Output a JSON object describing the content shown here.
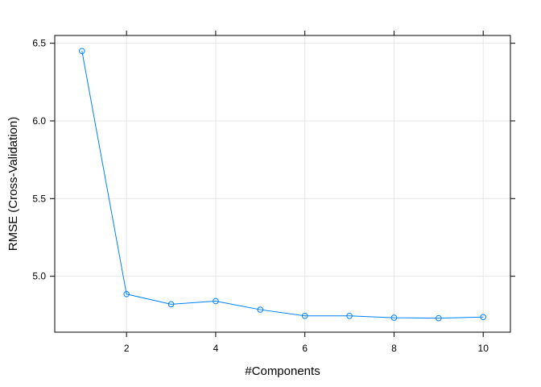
{
  "chart_data": {
    "type": "line",
    "title": "",
    "xlabel": "#Components",
    "ylabel": "RMSE (Cross-Validation)",
    "x": [
      1,
      2,
      3,
      4,
      5,
      6,
      7,
      8,
      9,
      10
    ],
    "series": [
      {
        "values": [
          6.45,
          4.885,
          4.82,
          4.84,
          4.785,
          4.745,
          4.745,
          4.733,
          4.73,
          4.737
        ]
      }
    ],
    "x_ticks": [
      "2",
      "4",
      "6",
      "8",
      "10"
    ],
    "x_tick_values": [
      2,
      4,
      6,
      8,
      10
    ],
    "y_ticks": [
      "5.0",
      "5.5",
      "6.0",
      "6.5"
    ],
    "y_tick_values": [
      5.0,
      5.5,
      6.0,
      6.5
    ],
    "xlim": [
      0.39,
      10.61
    ],
    "ylim": [
      4.64,
      6.55
    ],
    "grid": true,
    "marker": "open-circle",
    "colors": {
      "line": "#0080ff",
      "grid": "#e6e6e6",
      "axis": "#000000"
    }
  }
}
